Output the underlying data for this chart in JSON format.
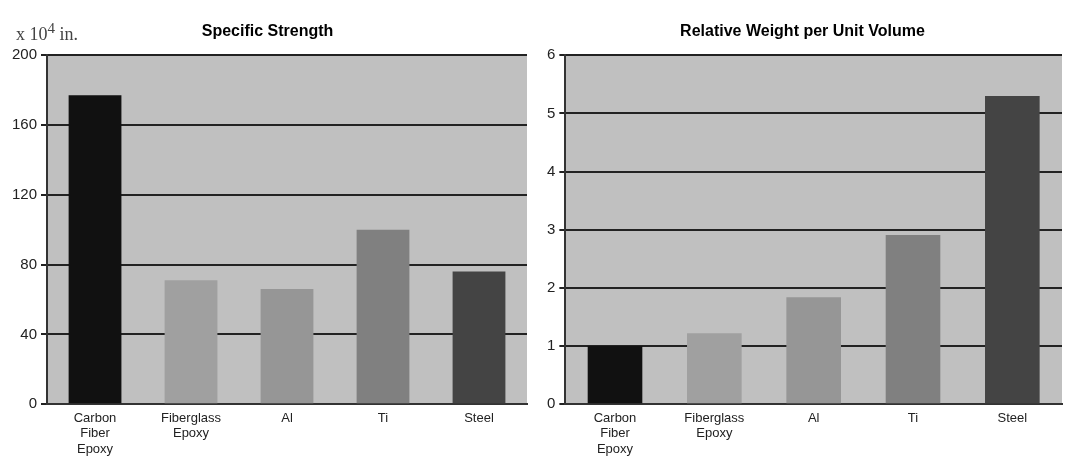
{
  "chart_data": [
    {
      "type": "bar",
      "title": "Specific Strength",
      "ylabel": "x 10$^{4}$ in.",
      "categories": [
        "Carbon Fiber Epoxy",
        "Fiberglass Epoxy",
        "Al",
        "Ti",
        "Steel"
      ],
      "values": [
        177,
        71,
        66,
        100,
        76
      ],
      "colors": [
        "#111111",
        "#a0a0a0",
        "#969696",
        "#808080",
        "#444444"
      ],
      "ylim": [
        0,
        200
      ],
      "yticks": [
        0,
        40,
        80,
        120,
        160,
        200
      ],
      "grid": "y"
    },
    {
      "type": "bar",
      "title": "Relative Weight per Unit Volume",
      "categories": [
        "Carbon Fiber Epoxy",
        "Fiberglass Epoxy",
        "Al",
        "Ti",
        "Steel"
      ],
      "values": [
        1.0,
        1.22,
        1.84,
        2.91,
        5.3
      ],
      "colors": [
        "#111111",
        "#a0a0a0",
        "#969696",
        "#808080",
        "#444444"
      ],
      "ylim": [
        0,
        6
      ],
      "yticks": [
        0,
        1,
        2,
        3,
        4,
        5,
        6
      ],
      "grid": "y"
    }
  ]
}
